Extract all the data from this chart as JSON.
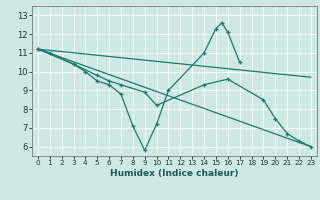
{
  "xlabel": "Humidex (Indice chaleur)",
  "background_color": "#cde8e5",
  "grid_color": "#ffffff",
  "line_color": "#1a7a6e",
  "xlim": [
    -0.5,
    23.5
  ],
  "ylim": [
    5.5,
    13.5
  ],
  "xticks": [
    0,
    1,
    2,
    3,
    4,
    5,
    6,
    7,
    8,
    9,
    10,
    11,
    12,
    13,
    14,
    15,
    16,
    17,
    18,
    19,
    20,
    21,
    22,
    23
  ],
  "yticks": [
    6,
    7,
    8,
    9,
    10,
    11,
    12,
    13
  ],
  "line1_x": [
    0,
    1,
    3,
    4,
    5,
    6,
    7,
    8,
    9,
    10,
    11,
    14,
    15,
    15.5,
    16,
    17
  ],
  "line1_y": [
    11.2,
    11.0,
    10.4,
    10.0,
    9.5,
    9.3,
    8.8,
    7.1,
    5.8,
    7.2,
    9.0,
    11.0,
    12.3,
    12.6,
    12.1,
    10.5
  ],
  "line2_x": [
    0,
    3,
    5,
    6,
    7,
    9,
    10,
    14,
    16,
    19,
    20,
    21,
    22,
    23
  ],
  "line2_y": [
    11.2,
    10.4,
    9.8,
    9.5,
    9.3,
    8.9,
    8.2,
    9.3,
    9.6,
    8.5,
    7.5,
    6.7,
    6.3,
    6.0
  ],
  "line3_x": [
    0,
    23
  ],
  "line3_y": [
    11.2,
    9.7
  ],
  "line4_x": [
    0,
    23
  ],
  "line4_y": [
    11.2,
    6.0
  ]
}
